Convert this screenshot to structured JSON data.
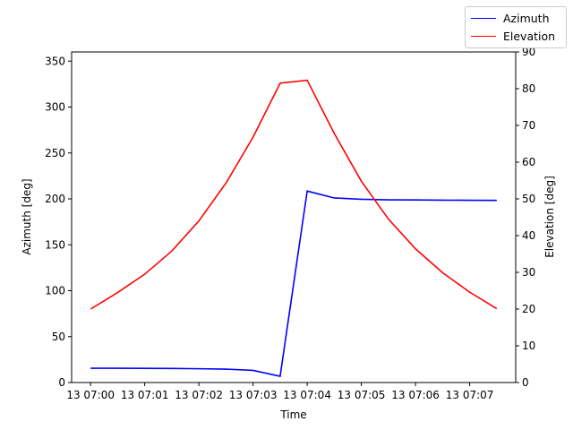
{
  "chart_data": {
    "type": "line",
    "xlabel": "Time",
    "ylabel_left": "Azimuth [deg]",
    "ylabel_right": "Elevation [deg]",
    "x_ticks": [
      "13 07:00",
      "13 07:01",
      "13 07:02",
      "13 07:03",
      "13 07:04",
      "13 07:05",
      "13 07:06",
      "13 07:07"
    ],
    "x_minutes": [
      0,
      0.5,
      1,
      1.5,
      2,
      2.5,
      3,
      3.5,
      4,
      4.5,
      5,
      5.5,
      6,
      6.5,
      7,
      7.5
    ],
    "xlim_minutes": [
      -0.35,
      7.85
    ],
    "y_left_lim": [
      0,
      360
    ],
    "y_left_ticks": [
      0,
      50,
      100,
      150,
      200,
      250,
      300,
      350
    ],
    "y_right_lim": [
      0,
      90
    ],
    "y_right_ticks": [
      0,
      10,
      20,
      30,
      40,
      50,
      60,
      70,
      80,
      90
    ],
    "series": [
      {
        "name": "Azimuth",
        "axis": "left",
        "color": "#0000ff",
        "values": [
          15.5,
          15.5,
          15.4,
          15.3,
          15.0,
          14.6,
          13.2,
          6.8,
          208.5,
          201.0,
          199.6,
          199.0,
          198.8,
          198.6,
          198.5,
          198.4
        ]
      },
      {
        "name": "Elevation",
        "axis": "right",
        "color": "#ff0000",
        "values": [
          20.0,
          24.5,
          29.5,
          35.8,
          44.0,
          54.3,
          66.8,
          81.5,
          82.3,
          67.8,
          54.8,
          44.5,
          36.4,
          29.9,
          24.6,
          20.1
        ]
      }
    ],
    "legend_placement": "top-right",
    "grid": false
  }
}
